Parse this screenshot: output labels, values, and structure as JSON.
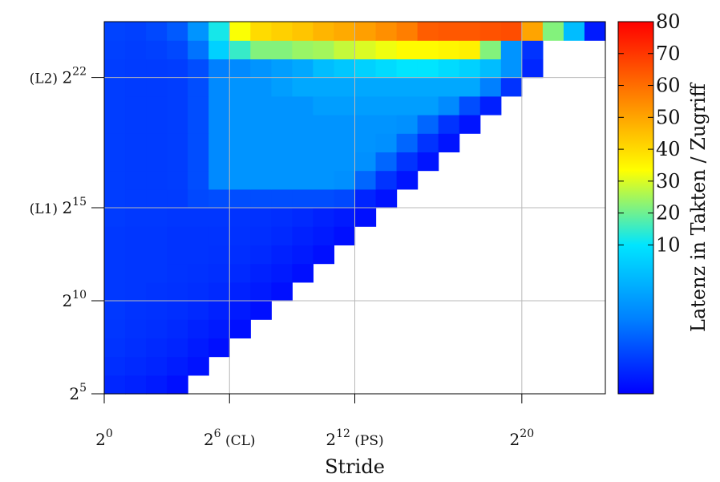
{
  "chart_data": {
    "type": "heatmap",
    "title": "",
    "xlabel": "Stride",
    "ylabel": "",
    "colorbar_label": "Latenz in Takten / Zugriff",
    "x_scale": "log2",
    "y_scale": "log2",
    "x_range_log2": [
      0,
      24
    ],
    "y_range_log2": [
      5,
      24
    ],
    "x_ticks": [
      {
        "exp": 0,
        "base": "2",
        "sup": "0",
        "suffix": ""
      },
      {
        "exp": 6,
        "base": "2",
        "sup": "6",
        "suffix": " (CL)"
      },
      {
        "exp": 12,
        "base": "2",
        "sup": "12",
        "suffix": " (PS)"
      },
      {
        "exp": 20,
        "base": "2",
        "sup": "20",
        "suffix": ""
      }
    ],
    "y_ticks": [
      {
        "exp": 5,
        "prefix": "",
        "base": "2",
        "sup": "5"
      },
      {
        "exp": 10,
        "prefix": "",
        "base": "2",
        "sup": "10"
      },
      {
        "exp": 15,
        "prefix": "(L1) ",
        "base": "2",
        "sup": "15"
      },
      {
        "exp": 22,
        "prefix": "(L2) ",
        "base": "2",
        "sup": "22"
      }
    ],
    "colorbar_range": [
      0,
      80
    ],
    "colorbar_ticks": [
      "10",
      "20",
      "30",
      "40",
      "50",
      "60",
      "70",
      "80"
    ],
    "colormap": [
      "#0000ff",
      "#0080ff",
      "#00e5ff",
      "#ffff00",
      "#ff8000",
      "#ff0000"
    ],
    "grid": true,
    "rows": [
      {
        "y_exp": 5,
        "values": [
          1.5,
          1.3,
          1.0,
          0.6
        ]
      },
      {
        "y_exp": 6,
        "values": [
          1.8,
          1.6,
          1.4,
          1.1,
          0.7
        ]
      },
      {
        "y_exp": 7,
        "values": [
          2.0,
          1.8,
          1.6,
          1.4,
          1.0,
          0.6
        ]
      },
      {
        "y_exp": 8,
        "values": [
          2.1,
          1.9,
          1.8,
          1.6,
          1.3,
          1.0,
          0.6
        ]
      },
      {
        "y_exp": 9,
        "values": [
          2.2,
          2.0,
          1.9,
          1.8,
          1.6,
          1.3,
          1.0,
          0.6
        ]
      },
      {
        "y_exp": 10,
        "values": [
          2.2,
          2.1,
          2.0,
          1.9,
          1.8,
          1.6,
          1.3,
          1.0,
          0.6
        ]
      },
      {
        "y_exp": 11,
        "values": [
          2.2,
          2.1,
          2.1,
          2.0,
          1.9,
          1.8,
          1.6,
          1.3,
          1.0,
          0.6
        ]
      },
      {
        "y_exp": 12,
        "values": [
          2.2,
          2.1,
          2.1,
          2.0,
          2.0,
          1.9,
          1.8,
          1.6,
          1.3,
          1.0,
          0.6
        ]
      },
      {
        "y_exp": 13,
        "values": [
          2.2,
          2.1,
          2.1,
          2.0,
          2.0,
          2.0,
          1.9,
          1.8,
          1.6,
          1.3,
          1.0,
          0.6
        ]
      },
      {
        "y_exp": 14,
        "values": [
          2.3,
          2.2,
          2.2,
          2.1,
          2.1,
          2.1,
          2.0,
          1.9,
          1.8,
          1.6,
          1.3,
          1.0,
          0.6
        ]
      },
      {
        "y_exp": 15,
        "values": [
          2.4,
          2.3,
          2.3,
          2.3,
          2.8,
          3.0,
          3.0,
          3.0,
          3.0,
          3.0,
          3.0,
          2.8,
          1.4,
          0.7
        ]
      },
      {
        "y_exp": 16,
        "values": [
          2.4,
          2.3,
          2.3,
          2.4,
          3.0,
          5.5,
          6.0,
          6.0,
          6.0,
          6.0,
          6.0,
          5.8,
          4.0,
          2.0,
          0.8
        ]
      },
      {
        "y_exp": 17,
        "values": [
          2.4,
          2.3,
          2.3,
          2.4,
          3.0,
          5.5,
          6.0,
          6.0,
          6.0,
          6.0,
          6.0,
          6.0,
          5.8,
          4.0,
          2.0,
          0.8
        ]
      },
      {
        "y_exp": 18,
        "values": [
          2.4,
          2.3,
          2.3,
          2.4,
          3.0,
          5.5,
          6.0,
          6.0,
          6.0,
          6.0,
          6.0,
          6.0,
          6.0,
          5.8,
          4.0,
          2.0,
          0.8
        ]
      },
      {
        "y_exp": 19,
        "values": [
          2.4,
          2.3,
          2.3,
          2.4,
          3.0,
          5.5,
          6.0,
          6.0,
          6.0,
          6.0,
          6.0,
          6.0,
          6.0,
          6.0,
          5.8,
          4.0,
          2.0,
          0.8
        ]
      },
      {
        "y_exp": 20,
        "values": [
          2.4,
          2.3,
          2.3,
          2.4,
          3.0,
          5.5,
          6.0,
          6.0,
          6.0,
          6.0,
          6.5,
          6.5,
          6.5,
          6.5,
          6.5,
          6.5,
          5.5,
          3.0,
          1.2
        ]
      },
      {
        "y_exp": 21,
        "values": [
          2.4,
          2.3,
          2.3,
          2.4,
          3.0,
          5.5,
          6.0,
          6.0,
          6.5,
          7.0,
          7.0,
          7.0,
          7.0,
          7.0,
          7.0,
          7.0,
          7.0,
          7.0,
          5.0,
          2.0
        ]
      },
      {
        "y_exp": 22,
        "values": [
          2.4,
          2.3,
          2.3,
          2.4,
          3.0,
          5.0,
          5.5,
          6.0,
          6.5,
          7.0,
          8.0,
          8.5,
          9.0,
          9.5,
          10.0,
          10.0,
          9.5,
          9.0,
          8.0,
          6.0,
          1.5
        ]
      },
      {
        "y_exp": 23,
        "values": [
          2.5,
          2.4,
          2.5,
          2.8,
          4.5,
          9.0,
          15.0,
          22.0,
          22.0,
          24.0,
          25.0,
          28.0,
          30.0,
          32.0,
          34.0,
          34.0,
          35.0,
          36.0,
          22.0,
          6.0,
          2.0
        ]
      },
      {
        "y_exp": 24,
        "values": [
          2.6,
          2.5,
          2.8,
          3.5,
          6.0,
          12.0,
          33.0,
          40.0,
          42.0,
          44.0,
          47.0,
          49.0,
          51.0,
          54.0,
          57.0,
          63.0,
          64.0,
          64.0,
          65.0,
          66.0,
          50.0,
          22.0,
          8.0,
          1.0
        ]
      }
    ]
  }
}
